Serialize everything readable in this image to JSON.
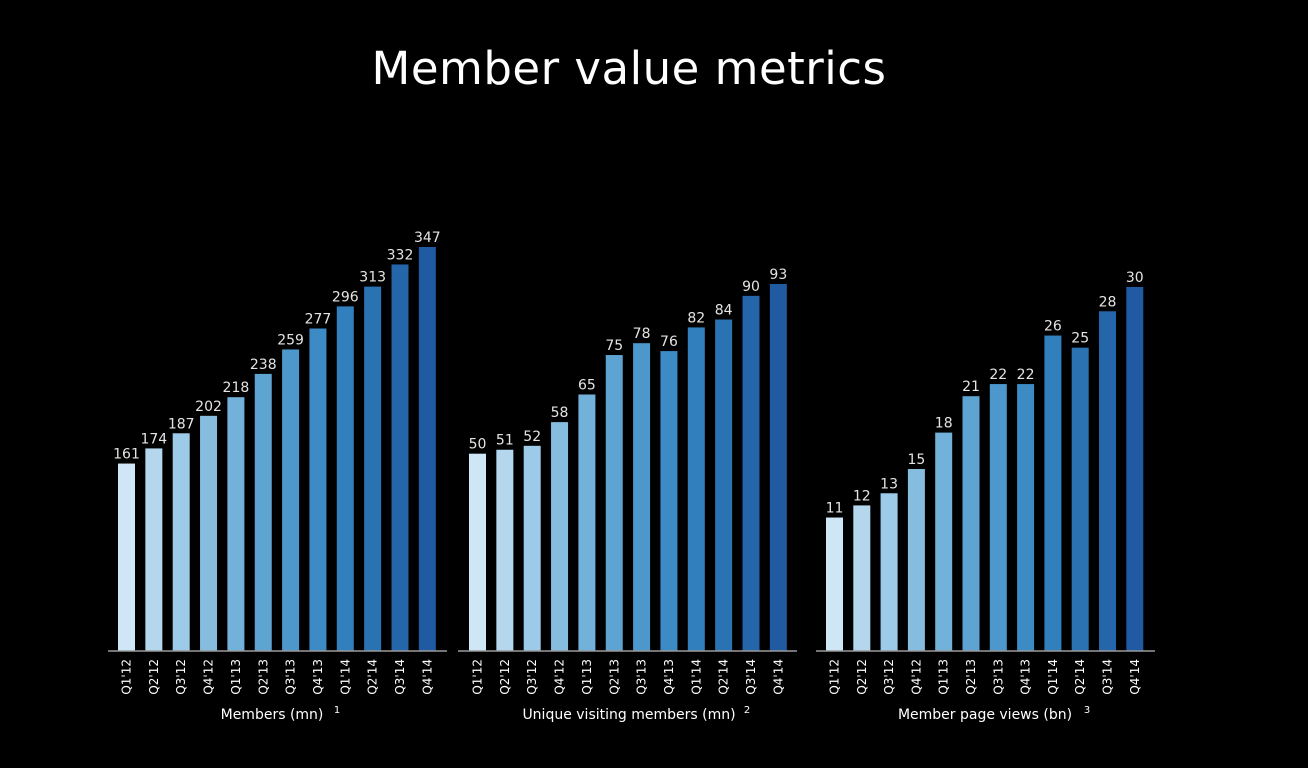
{
  "title": "Member value metrics",
  "colors": {
    "background": "#000000",
    "text": "#ffffff",
    "bar_label": "#e4e4e4",
    "axis_line": "#9a9a9a",
    "bar_gradient": [
      "#cfe6f6",
      "#b4d7ee",
      "#9dcae8",
      "#86bddf",
      "#72b1da",
      "#5ea4d3",
      "#4c98cc",
      "#3c8bc4",
      "#317fbd",
      "#2b72b3",
      "#2565aa",
      "#1f5aa2"
    ]
  },
  "chart_data": [
    {
      "type": "bar",
      "title": "",
      "xlabel": "Members (mn)",
      "footnote": "1",
      "ylabel": "",
      "categories": [
        "Q1'12",
        "Q2'12",
        "Q3'12",
        "Q4'12",
        "Q1'13",
        "Q2'13",
        "Q3'13",
        "Q4'13",
        "Q1'14",
        "Q2'14",
        "Q3'14",
        "Q4'14"
      ],
      "values": [
        161,
        174,
        187,
        202,
        218,
        238,
        259,
        277,
        296,
        313,
        332,
        347
      ],
      "ylim": [
        0,
        347
      ],
      "grid": false,
      "legend": "none"
    },
    {
      "type": "bar",
      "title": "",
      "xlabel": "Unique visiting members (mn)",
      "footnote": "2",
      "ylabel": "",
      "categories": [
        "Q1'12",
        "Q2'12",
        "Q3'12",
        "Q4'12",
        "Q1'13",
        "Q2'13",
        "Q3'13",
        "Q4'13",
        "Q1'14",
        "Q2'14",
        "Q3'14",
        "Q4'14"
      ],
      "values": [
        50,
        51,
        52,
        58,
        65,
        75,
        78,
        76,
        82,
        84,
        90,
        93
      ],
      "ylim": [
        0,
        93
      ],
      "grid": false,
      "legend": "none"
    },
    {
      "type": "bar",
      "title": "",
      "xlabel": "Member page views (bn)",
      "footnote": "3",
      "ylabel": "",
      "categories": [
        "Q1'12",
        "Q2'12",
        "Q3'12",
        "Q4'12",
        "Q1'13",
        "Q2'13",
        "Q3'13",
        "Q4'13",
        "Q1'14",
        "Q2'14",
        "Q3'14",
        "Q4'14"
      ],
      "values": [
        11,
        12,
        13,
        15,
        18,
        21,
        22,
        22,
        26,
        25,
        28,
        30
      ],
      "ylim": [
        0,
        30
      ],
      "grid": false,
      "legend": "none"
    }
  ]
}
